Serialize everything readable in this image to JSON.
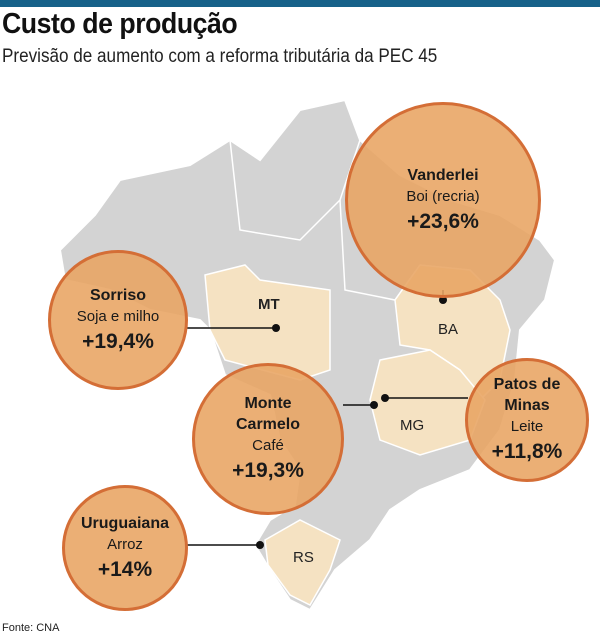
{
  "title": "Custo de produção",
  "subtitle": "Previsão de aumento com a reforma tributária da PEC 45",
  "colors": {
    "bar": "#176189",
    "map": "#d3d3d3",
    "highlight": "#f5e2c2",
    "bubble": "#e8a462",
    "bubble_border": "#d46e36"
  },
  "states": {
    "mt": "MT",
    "ba": "BA",
    "mg": "MG",
    "rs": "RS"
  },
  "bubbles": [
    {
      "city": "Vanderlei",
      "crop": "Boi (recria)",
      "value": "+23,6%"
    },
    {
      "city": "Sorriso",
      "crop": "Soja e milho",
      "value": "+19,4%"
    },
    {
      "city": "Monte Carmelo",
      "crop": "Café",
      "value": "+19,3%"
    },
    {
      "city": "Patos de Minas",
      "crop": "Leite",
      "value": "+11,8%"
    },
    {
      "city": "Uruguaiana",
      "crop": "Arroz",
      "value": "+14%"
    }
  ],
  "source": "Fonte: CNA"
}
